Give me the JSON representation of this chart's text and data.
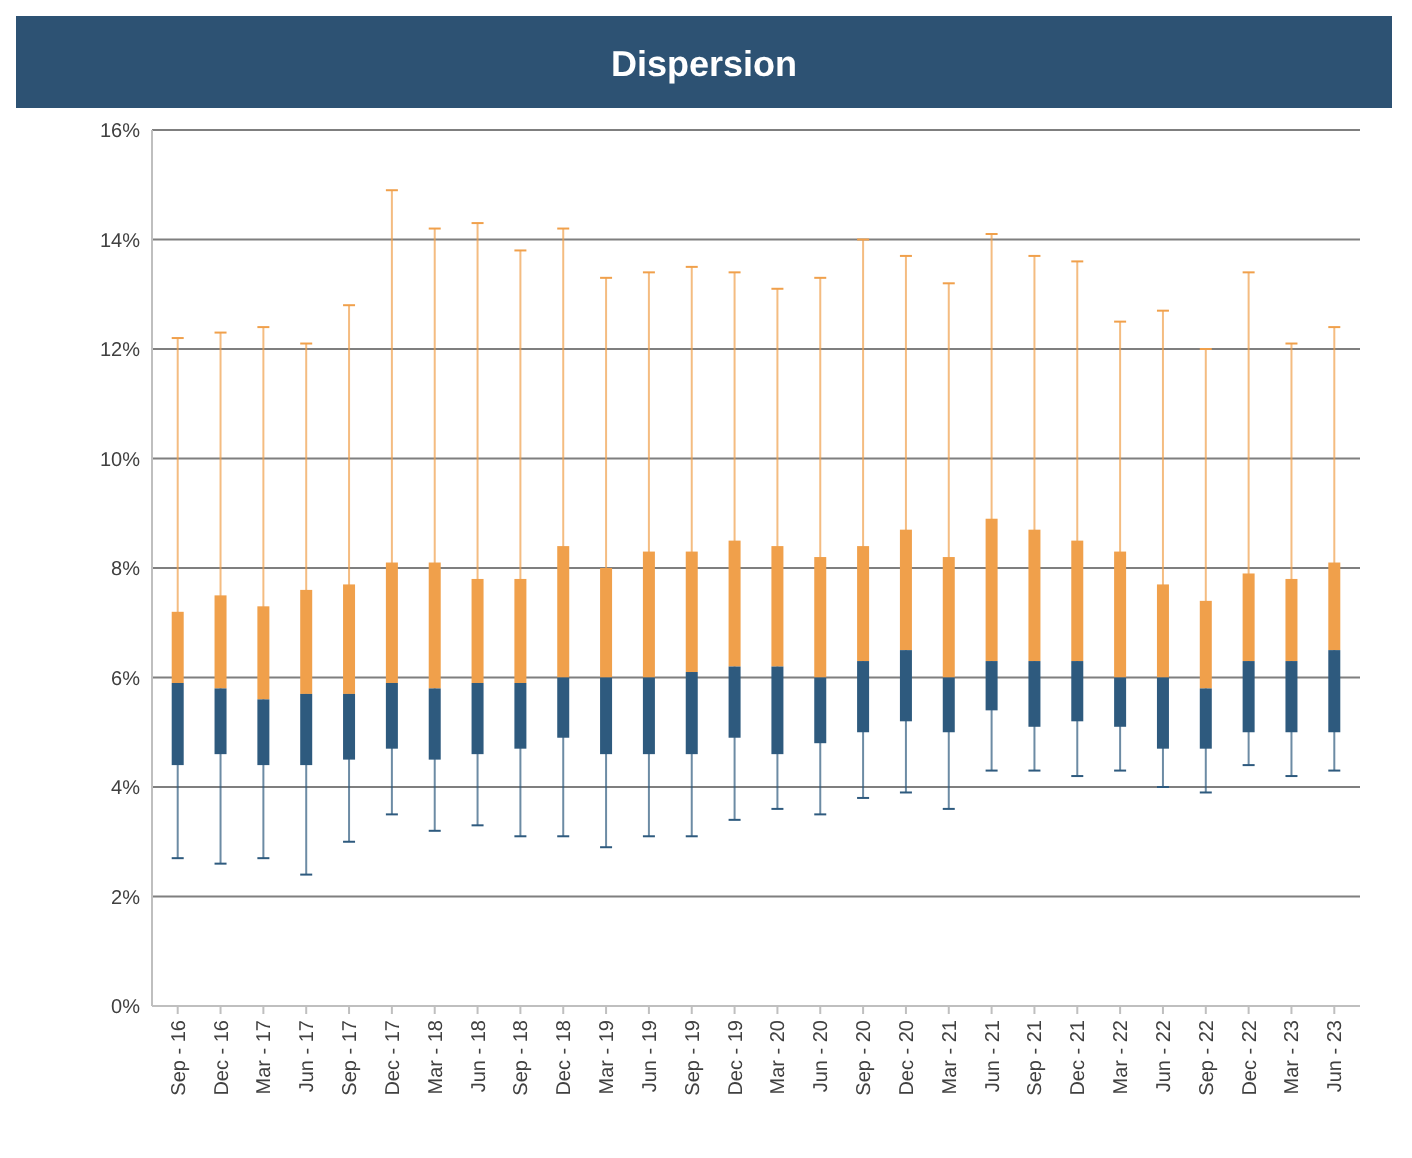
{
  "chart_data": {
    "type": "box",
    "title": "Dispersion",
    "categories": [
      "Sep - 16",
      "Dec - 16",
      "Mar - 17",
      "Jun - 17",
      "Sep - 17",
      "Dec - 17",
      "Mar - 18",
      "Jun - 18",
      "Sep - 18",
      "Dec - 18",
      "Mar - 19",
      "Jun - 19",
      "Sep - 19",
      "Dec - 19",
      "Mar - 20",
      "Jun - 20",
      "Sep - 20",
      "Dec - 20",
      "Mar - 21",
      "Jun - 21",
      "Sep - 21",
      "Dec - 21",
      "Mar - 22",
      "Jun - 22",
      "Sep - 22",
      "Dec - 22",
      "Mar - 23",
      "Jun - 23"
    ],
    "color": "#f0a04b",
    "series": [
      {
        "color": "#2e5a7e",
        "boxes": [
          {
            "low": 2.7,
            "q1": 4.4,
            "median": 5.9,
            "q3": 7.2,
            "high": 12.2
          },
          {
            "low": 2.6,
            "q1": 4.6,
            "median": 5.8,
            "q3": 7.5,
            "high": 12.3
          },
          {
            "low": 2.7,
            "q1": 4.4,
            "median": 5.6,
            "q3": 7.3,
            "high": 12.4
          },
          {
            "low": 2.4,
            "q1": 4.4,
            "median": 5.7,
            "q3": 7.6,
            "high": 12.1
          },
          {
            "low": 3.0,
            "q1": 4.5,
            "median": 5.7,
            "q3": 7.7,
            "high": 12.8
          },
          {
            "low": 3.5,
            "q1": 4.7,
            "median": 5.9,
            "q3": 8.1,
            "high": 14.9
          },
          {
            "low": 3.2,
            "q1": 4.5,
            "median": 5.8,
            "q3": 8.1,
            "high": 14.2
          },
          {
            "low": 3.3,
            "q1": 4.6,
            "median": 5.9,
            "q3": 7.8,
            "high": 14.3
          },
          {
            "low": 3.1,
            "q1": 4.7,
            "median": 5.9,
            "q3": 7.8,
            "high": 13.8
          },
          {
            "low": 3.1,
            "q1": 4.9,
            "median": 6.0,
            "q3": 8.4,
            "high": 14.2
          },
          {
            "low": 2.9,
            "q1": 4.6,
            "median": 6.0,
            "q3": 8.0,
            "high": 13.3
          },
          {
            "low": 3.1,
            "q1": 4.6,
            "median": 6.0,
            "q3": 8.3,
            "high": 13.4
          },
          {
            "low": 3.1,
            "q1": 4.6,
            "median": 6.1,
            "q3": 8.3,
            "high": 13.5
          },
          {
            "low": 3.4,
            "q1": 4.9,
            "median": 6.2,
            "q3": 8.5,
            "high": 13.4
          },
          {
            "low": 3.6,
            "q1": 4.6,
            "median": 6.2,
            "q3": 8.4,
            "high": 13.1
          },
          {
            "low": 3.5,
            "q1": 4.8,
            "median": 6.0,
            "q3": 8.2,
            "high": 13.3
          },
          {
            "low": 3.8,
            "q1": 5.0,
            "median": 6.3,
            "q3": 8.4,
            "high": 14.0
          },
          {
            "low": 3.9,
            "q1": 5.2,
            "median": 6.5,
            "q3": 8.7,
            "high": 13.7
          },
          {
            "low": 3.6,
            "q1": 5.0,
            "median": 6.0,
            "q3": 8.2,
            "high": 13.2
          },
          {
            "low": 4.3,
            "q1": 5.4,
            "median": 6.3,
            "q3": 8.9,
            "high": 14.1
          },
          {
            "low": 4.3,
            "q1": 5.1,
            "median": 6.3,
            "q3": 8.7,
            "high": 13.7
          },
          {
            "low": 4.2,
            "q1": 5.2,
            "median": 6.3,
            "q3": 8.5,
            "high": 13.6
          },
          {
            "low": 4.3,
            "q1": 5.1,
            "median": 6.0,
            "q3": 8.3,
            "high": 12.5
          },
          {
            "low": 4.0,
            "q1": 4.7,
            "median": 6.0,
            "q3": 7.7,
            "high": 12.7
          },
          {
            "low": 3.9,
            "q1": 4.7,
            "median": 5.8,
            "q3": 7.4,
            "high": 12.0
          },
          {
            "low": 4.4,
            "q1": 5.0,
            "median": 6.3,
            "q3": 7.9,
            "high": 13.4
          },
          {
            "low": 4.2,
            "q1": 5.0,
            "median": 6.3,
            "q3": 7.8,
            "high": 12.1
          },
          {
            "low": 4.3,
            "q1": 5.0,
            "median": 6.5,
            "q3": 8.1,
            "high": 12.4
          }
        ]
      }
    ],
    "ylim": [
      0,
      16
    ],
    "yticks": [
      {
        "value": 0,
        "label": "0%"
      },
      {
        "value": 2,
        "label": "2%"
      },
      {
        "value": 4,
        "label": "4%"
      },
      {
        "value": 6,
        "label": "6%"
      },
      {
        "value": 8,
        "label": "8%"
      },
      {
        "value": 10,
        "label": "10%"
      },
      {
        "value": 12,
        "label": "12%"
      },
      {
        "value": 14,
        "label": "14%"
      },
      {
        "value": 16,
        "label": "16%"
      }
    ],
    "grid": "y"
  }
}
